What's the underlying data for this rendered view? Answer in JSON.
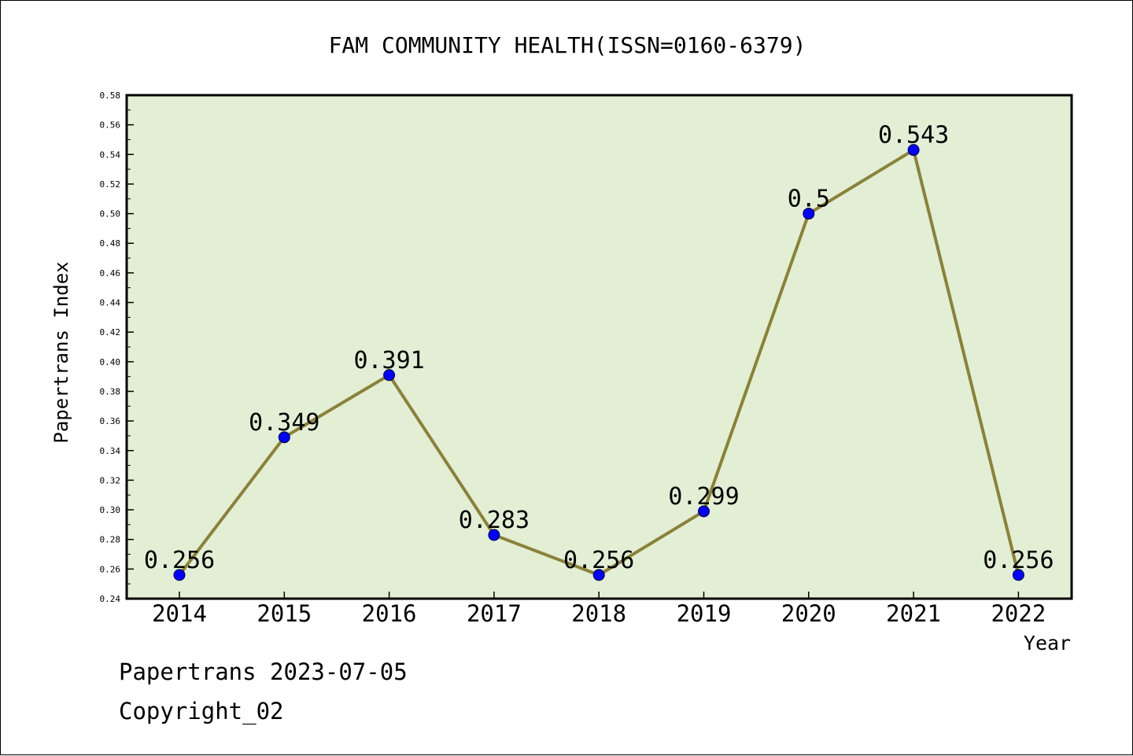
{
  "chart_data": {
    "type": "line",
    "title": "FAM COMMUNITY HEALTH(ISSN=0160-6379)",
    "xlabel": "Year",
    "ylabel": "Papertrans Index",
    "categories": [
      "2014",
      "2015",
      "2016",
      "2017",
      "2018",
      "2019",
      "2020",
      "2021",
      "2022"
    ],
    "values": [
      0.256,
      0.349,
      0.391,
      0.283,
      0.256,
      0.299,
      0.5,
      0.543,
      0.256
    ],
    "data_labels": [
      "0.256",
      "0.349",
      "0.391",
      "0.283",
      "0.256",
      "0.299",
      "0.5",
      "0.543",
      "0.256"
    ],
    "ylim": [
      0.24,
      0.58
    ],
    "yticks": [
      "0.24",
      "0.26",
      "0.28",
      "0.30",
      "0.32",
      "0.34",
      "0.36",
      "0.38",
      "0.40",
      "0.42",
      "0.44",
      "0.46",
      "0.48",
      "0.50",
      "0.52",
      "0.54",
      "0.56",
      "0.58"
    ],
    "grid": false,
    "colors": {
      "plot_background": "#e2efd5",
      "line": "#8b8138",
      "marker": "#0000ff"
    }
  },
  "footer": {
    "line1": "Papertrans 2023-07-05",
    "line2": "Copyright_02"
  }
}
